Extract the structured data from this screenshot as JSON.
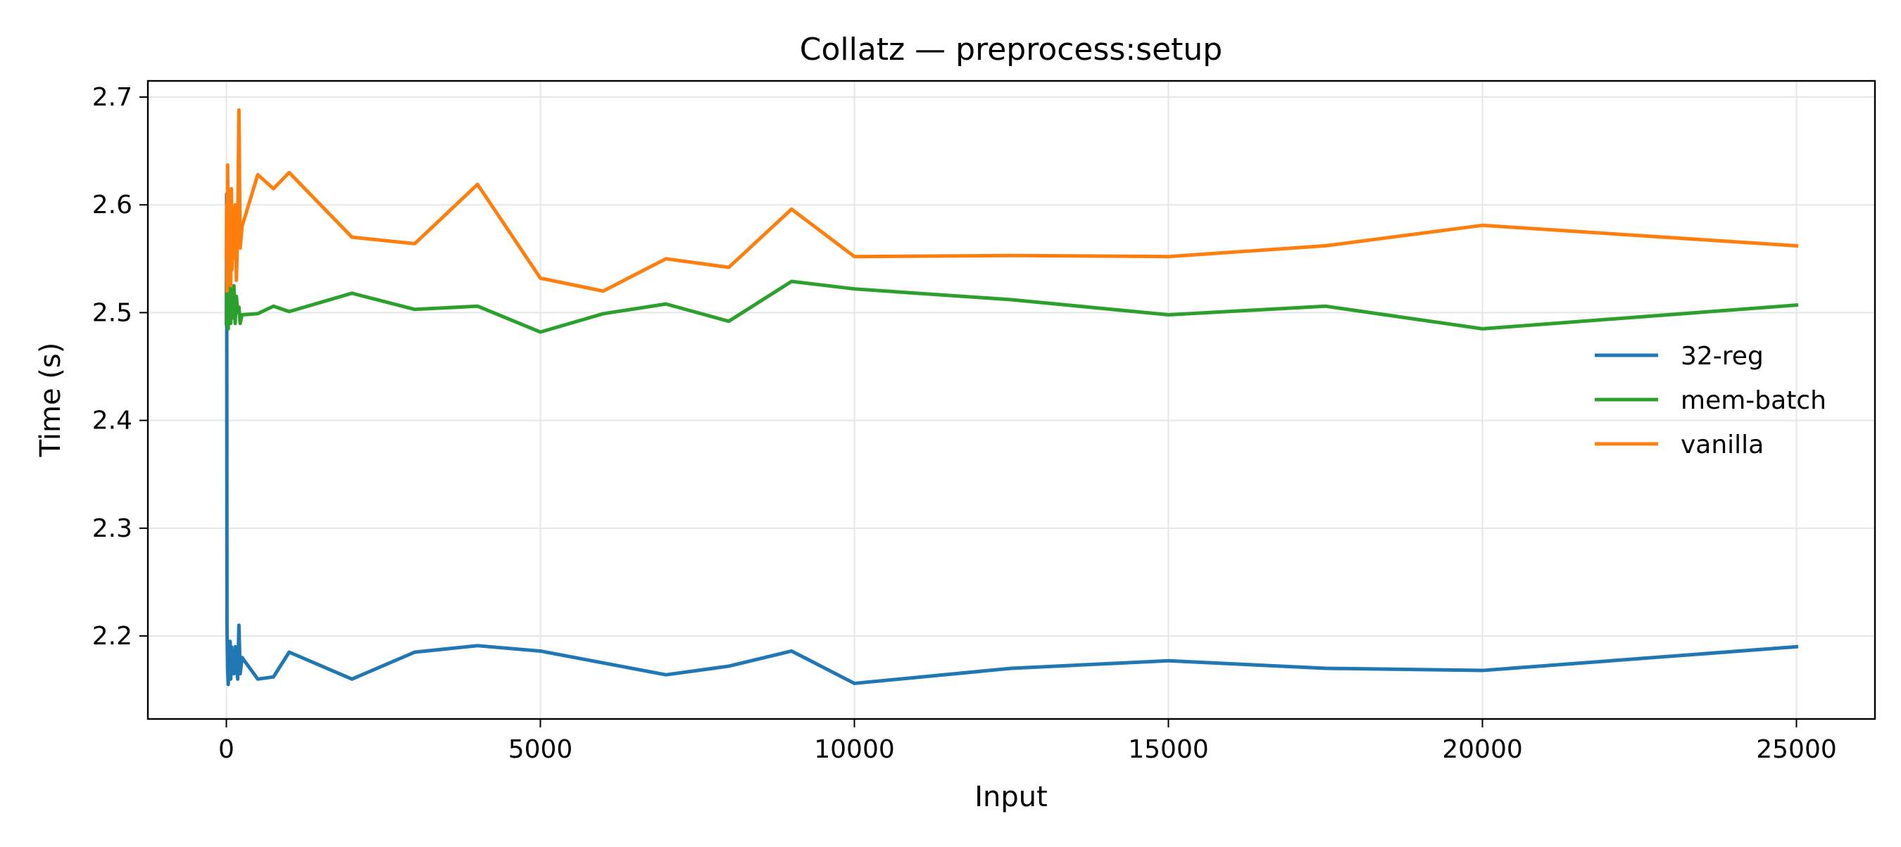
{
  "chart_data": {
    "type": "line",
    "title": "Collatz — preprocess:setup",
    "xlabel": "Input",
    "ylabel": "Time (s)",
    "xlim": [
      -1250,
      26250
    ],
    "ylim": [
      2.123,
      2.715
    ],
    "xticks": [
      0,
      5000,
      10000,
      15000,
      20000,
      25000
    ],
    "xtick_labels": [
      "0",
      "5000",
      "10000",
      "15000",
      "20000",
      "25000"
    ],
    "yticks": [
      2.2,
      2.3,
      2.4,
      2.5,
      2.6,
      2.7
    ],
    "ytick_labels": [
      "2.2",
      "2.3",
      "2.4",
      "2.5",
      "2.6",
      "2.7"
    ],
    "grid": true,
    "legend_position": "right",
    "series": [
      {
        "name": "32-reg",
        "color": "#1f77b4",
        "x": [
          1,
          5,
          10,
          20,
          30,
          40,
          50,
          60,
          70,
          80,
          90,
          100,
          120,
          140,
          160,
          180,
          200,
          220,
          250,
          500,
          750,
          1000,
          2000,
          3000,
          4000,
          5000,
          6000,
          7000,
          8000,
          9000,
          10000,
          12500,
          15000,
          17500,
          20000,
          25000
        ],
        "y": [
          2.49,
          2.61,
          2.21,
          2.17,
          2.155,
          2.18,
          2.165,
          2.195,
          2.16,
          2.19,
          2.17,
          2.185,
          2.165,
          2.19,
          2.175,
          2.16,
          2.21,
          2.165,
          2.18,
          2.16,
          2.162,
          2.185,
          2.16,
          2.185,
          2.191,
          2.186,
          2.175,
          2.164,
          2.172,
          2.186,
          2.156,
          2.17,
          2.177,
          2.17,
          2.168,
          2.19
        ]
      },
      {
        "name": "mem-batch",
        "color": "#2ca02c",
        "x": [
          1,
          5,
          10,
          20,
          30,
          40,
          50,
          60,
          70,
          80,
          90,
          100,
          120,
          140,
          160,
          180,
          200,
          220,
          250,
          500,
          750,
          1000,
          2000,
          3000,
          4000,
          5000,
          6000,
          7000,
          8000,
          9000,
          10000,
          12500,
          15000,
          17500,
          20000,
          25000
        ],
        "y": [
          2.49,
          2.54,
          2.5,
          2.515,
          2.485,
          2.52,
          2.495,
          2.53,
          2.49,
          2.51,
          2.5,
          2.495,
          2.525,
          2.49,
          2.515,
          2.5,
          2.505,
          2.49,
          2.498,
          2.499,
          2.506,
          2.501,
          2.518,
          2.503,
          2.506,
          2.482,
          2.499,
          2.508,
          2.492,
          2.529,
          2.522,
          2.512,
          2.498,
          2.506,
          2.485,
          2.507
        ]
      },
      {
        "name": "vanilla",
        "color": "#ff7f0e",
        "x": [
          1,
          5,
          10,
          20,
          30,
          40,
          50,
          60,
          70,
          80,
          90,
          100,
          120,
          140,
          160,
          180,
          200,
          220,
          250,
          500,
          750,
          1000,
          2000,
          3000,
          4000,
          5000,
          6000,
          7000,
          8000,
          9000,
          10000,
          12500,
          15000,
          17500,
          20000,
          25000
        ],
        "y": [
          2.55,
          2.6,
          2.52,
          2.637,
          2.57,
          2.53,
          2.61,
          2.555,
          2.525,
          2.615,
          2.54,
          2.585,
          2.55,
          2.6,
          2.53,
          2.575,
          2.688,
          2.56,
          2.58,
          2.628,
          2.615,
          2.63,
          2.57,
          2.564,
          2.619,
          2.532,
          2.52,
          2.55,
          2.542,
          2.596,
          2.552,
          2.553,
          2.552,
          2.562,
          2.581,
          2.562
        ]
      }
    ]
  }
}
